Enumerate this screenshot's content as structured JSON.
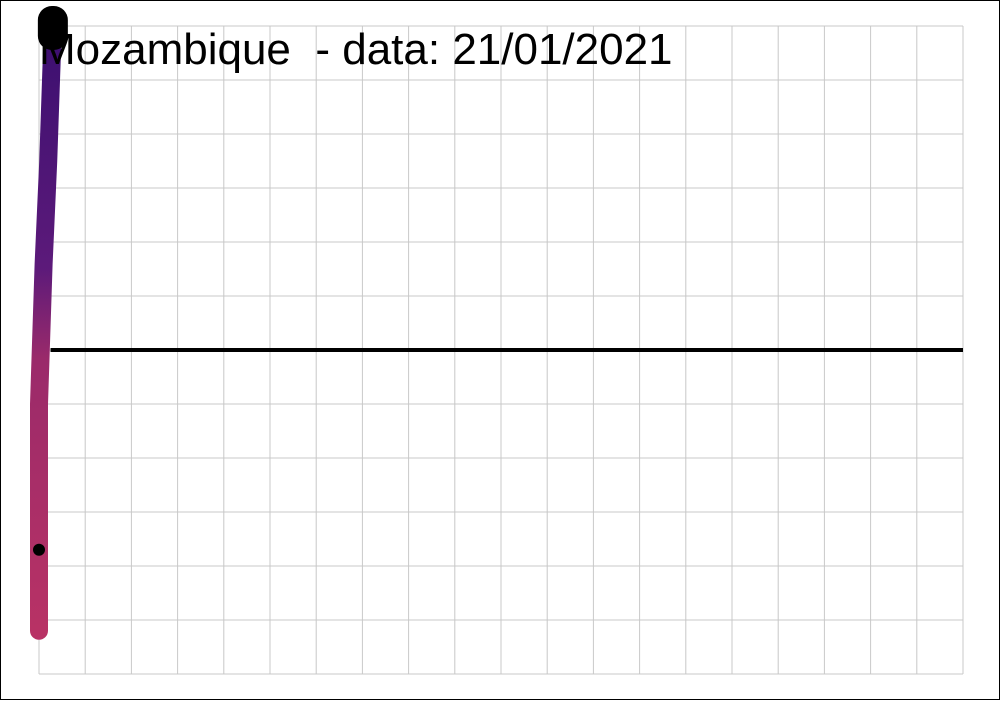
{
  "chart_data": {
    "type": "line",
    "title": "Mozambique  - data: 21/01/2021",
    "xlabel": "",
    "ylabel": "",
    "grid": true,
    "xlim": [
      0,
      20
    ],
    "ylim": [
      0,
      12
    ],
    "reference_line": {
      "y": 6,
      "color": "#000000"
    },
    "colors": {
      "grid": "#c8c8c8",
      "gradient_top": "#3b0f70",
      "gradient_mid": "#5c1a7a",
      "gradient_low": "#9a2a6a",
      "gradient_bottom": "#b83265",
      "marker": "#000000"
    },
    "series": [
      {
        "values": [
          {
            "x": 0.3,
            "y": 12.0
          },
          {
            "x": 0.2,
            "y": 9.5
          },
          {
            "x": 0.1,
            "y": 7.6
          },
          {
            "x": 0.0,
            "y": 5.0
          },
          {
            "x": 0.0,
            "y": 0.8
          }
        ]
      }
    ],
    "markers": [
      {
        "x": 0.3,
        "y": 12.0
      },
      {
        "x": 0.0,
        "y": 2.3
      }
    ]
  }
}
